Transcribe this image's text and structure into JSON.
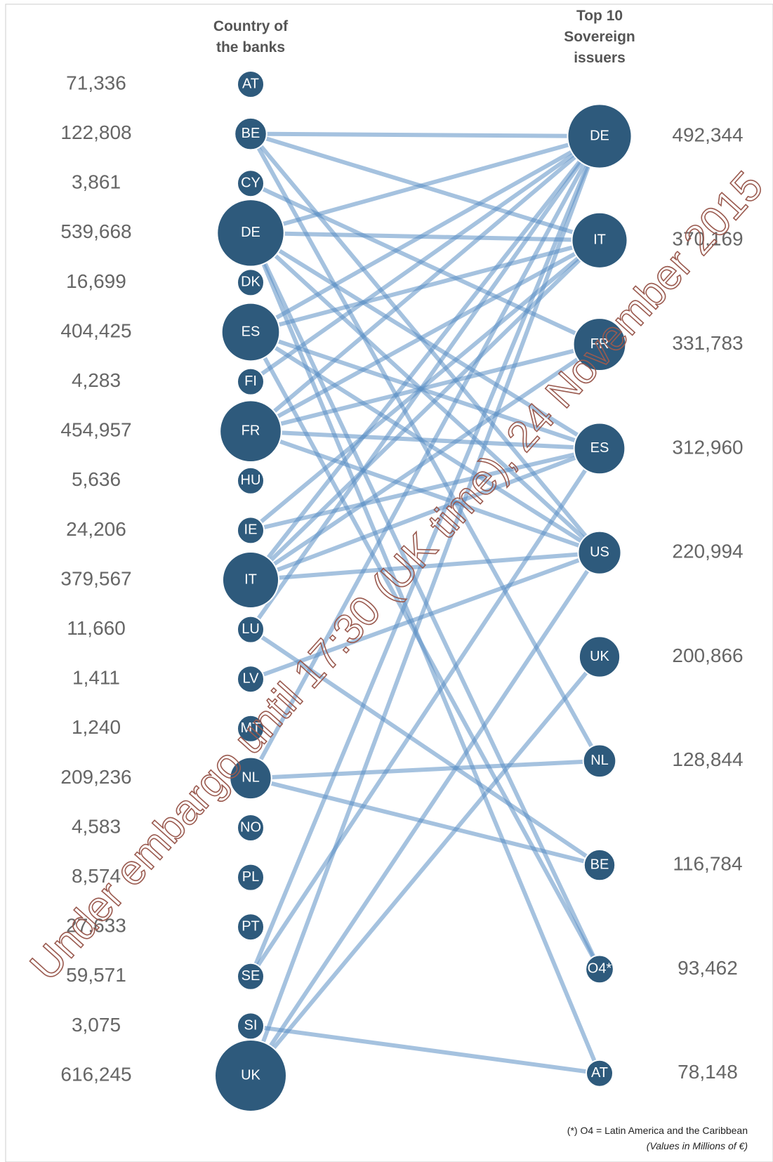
{
  "headers": {
    "left": [
      "Country of",
      "the banks"
    ],
    "right": [
      "Top 10",
      "Sovereign",
      "issuers"
    ]
  },
  "left_nodes": [
    {
      "code": "AT",
      "value": 71336,
      "value_label": "71,336"
    },
    {
      "code": "BE",
      "value": 122808,
      "value_label": "122,808"
    },
    {
      "code": "CY",
      "value": 3861,
      "value_label": "3,861"
    },
    {
      "code": "DE",
      "value": 539668,
      "value_label": "539,668"
    },
    {
      "code": "DK",
      "value": 16699,
      "value_label": "16,699"
    },
    {
      "code": "ES",
      "value": 404425,
      "value_label": "404,425"
    },
    {
      "code": "FI",
      "value": 4283,
      "value_label": "4,283"
    },
    {
      "code": "FR",
      "value": 454957,
      "value_label": "454,957"
    },
    {
      "code": "HU",
      "value": 5636,
      "value_label": "5,636"
    },
    {
      "code": "IE",
      "value": 24206,
      "value_label": "24,206"
    },
    {
      "code": "IT",
      "value": 379567,
      "value_label": "379,567"
    },
    {
      "code": "LU",
      "value": 11660,
      "value_label": "11,660"
    },
    {
      "code": "LV",
      "value": 1411,
      "value_label": "1,411"
    },
    {
      "code": "MT",
      "value": 1240,
      "value_label": "1,240"
    },
    {
      "code": "NL",
      "value": 209236,
      "value_label": "209,236"
    },
    {
      "code": "NO",
      "value": 4583,
      "value_label": "4,583"
    },
    {
      "code": "PL",
      "value": 8574,
      "value_label": "8,574"
    },
    {
      "code": "PT",
      "value": 27633,
      "value_label": "27,633"
    },
    {
      "code": "SE",
      "value": 59571,
      "value_label": "59,571"
    },
    {
      "code": "SI",
      "value": 3075,
      "value_label": "3,075"
    },
    {
      "code": "UK",
      "value": 616245,
      "value_label": "616,245"
    }
  ],
  "right_nodes": [
    {
      "code": "DE",
      "value": 492344,
      "value_label": "492,344"
    },
    {
      "code": "IT",
      "value": 370169,
      "value_label": "370,169"
    },
    {
      "code": "FR",
      "value": 331783,
      "value_label": "331,783"
    },
    {
      "code": "ES",
      "value": 312960,
      "value_label": "312,960"
    },
    {
      "code": "US",
      "value": 220994,
      "value_label": "220,994"
    },
    {
      "code": "UK",
      "value": 200866,
      "value_label": "200,866"
    },
    {
      "code": "NL",
      "value": 128844,
      "value_label": "128,844"
    },
    {
      "code": "BE",
      "value": 116784,
      "value_label": "116,784"
    },
    {
      "code": "O4*",
      "value": 93462,
      "value_label": "93,462"
    },
    {
      "code": "AT",
      "value": 78148,
      "value_label": "78,148"
    }
  ],
  "links": [
    [
      "BE",
      "DE"
    ],
    [
      "BE",
      "IT"
    ],
    [
      "BE",
      "US"
    ],
    [
      "BE",
      "NL"
    ],
    [
      "CY",
      "FR"
    ],
    [
      "DE",
      "DE"
    ],
    [
      "DE",
      "IT"
    ],
    [
      "DE",
      "ES"
    ],
    [
      "DE",
      "US"
    ],
    [
      "DE",
      "O4*"
    ],
    [
      "DE",
      "AT"
    ],
    [
      "ES",
      "DE"
    ],
    [
      "ES",
      "IT"
    ],
    [
      "ES",
      "ES"
    ],
    [
      "ES",
      "US"
    ],
    [
      "ES",
      "O4*"
    ],
    [
      "FI",
      "DE"
    ],
    [
      "FR",
      "DE"
    ],
    [
      "FR",
      "IT"
    ],
    [
      "FR",
      "FR"
    ],
    [
      "FR",
      "ES"
    ],
    [
      "FR",
      "US"
    ],
    [
      "IE",
      "IT"
    ],
    [
      "IE",
      "ES"
    ],
    [
      "IT",
      "DE"
    ],
    [
      "IT",
      "IT"
    ],
    [
      "IT",
      "FR"
    ],
    [
      "IT",
      "ES"
    ],
    [
      "IT",
      "US"
    ],
    [
      "LU",
      "DE"
    ],
    [
      "LU",
      "BE"
    ],
    [
      "LV",
      "US"
    ],
    [
      "NL",
      "DE"
    ],
    [
      "NL",
      "NL"
    ],
    [
      "NL",
      "BE"
    ],
    [
      "SE",
      "DE"
    ],
    [
      "SE",
      "ES"
    ],
    [
      "SI",
      "AT"
    ],
    [
      "UK",
      "DE"
    ],
    [
      "UK",
      "US"
    ],
    [
      "UK",
      "UK"
    ]
  ],
  "watermark": "Under embargo until 17:30 (UK time), 24 November 2015",
  "notes": [
    "(*) O4 = Latin America and the Caribbean",
    "(Values in Millions of €)"
  ]
}
